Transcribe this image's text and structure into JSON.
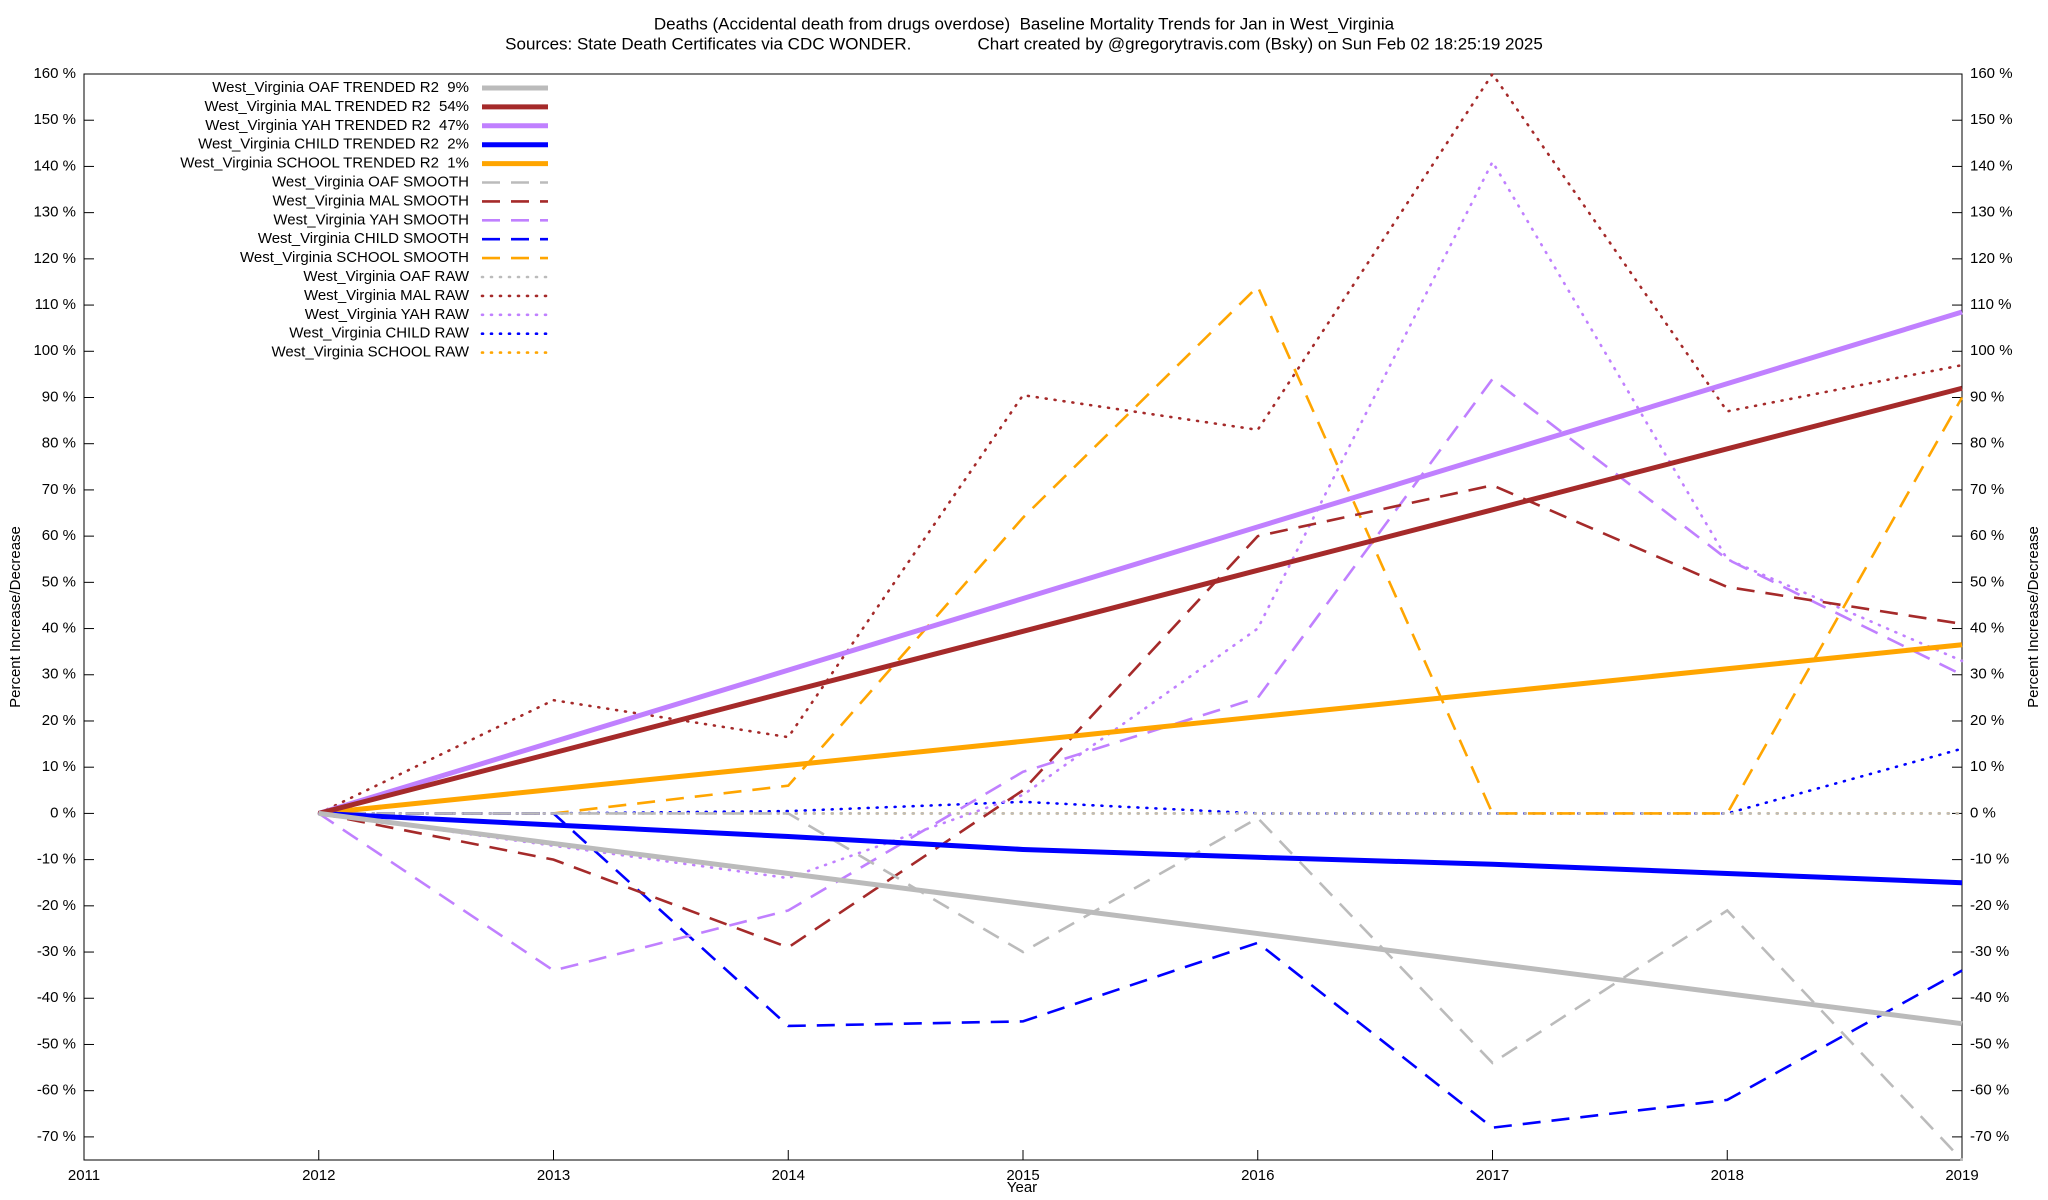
{
  "chart_data": {
    "type": "line",
    "title": "Deaths (Accidental death from drugs overdose)  Baseline Mortality Trends for Jan in West_Virginia",
    "subtitle": "Sources: State Death Certificates via CDC WONDER.              Chart created by @gregorytravis.com (Bsky) on Sun Feb 02 18:25:19 2025",
    "xlabel": "Year",
    "ylabel": "Percent Increase/Decrease",
    "y2label": "Percent Increase/Decrease",
    "x": [
      2012,
      2013,
      2014,
      2015,
      2016,
      2017,
      2018,
      2019
    ],
    "xlim": [
      2011,
      2019
    ],
    "xticks": [
      2011,
      2012,
      2013,
      2014,
      2015,
      2016,
      2017,
      2018,
      2019
    ],
    "ylim": [
      -75,
      160
    ],
    "yticks": [
      {
        "value": -70,
        "label": "-70 %"
      },
      {
        "value": -60,
        "label": "-60 %"
      },
      {
        "value": -50,
        "label": "-50 %"
      },
      {
        "value": -40,
        "label": "-40 %"
      },
      {
        "value": -30,
        "label": "-30 %"
      },
      {
        "value": -20,
        "label": "-20 %"
      },
      {
        "value": -10,
        "label": "-10 %"
      },
      {
        "value": 0,
        "label": "0 %"
      },
      {
        "value": 10,
        "label": "10 %"
      },
      {
        "value": 20,
        "label": "20 %"
      },
      {
        "value": 30,
        "label": "30 %"
      },
      {
        "value": 40,
        "label": "40 %"
      },
      {
        "value": 50,
        "label": "50 %"
      },
      {
        "value": 60,
        "label": "60 %"
      },
      {
        "value": 70,
        "label": "70 %"
      },
      {
        "value": 80,
        "label": "80 %"
      },
      {
        "value": 90,
        "label": "90 %"
      },
      {
        "value": 100,
        "label": "100 %"
      },
      {
        "value": 110,
        "label": "110 %"
      },
      {
        "value": 120,
        "label": "120 %"
      },
      {
        "value": 130,
        "label": "130 %"
      },
      {
        "value": 140,
        "label": "140 %"
      },
      {
        "value": 150,
        "label": "150 %"
      },
      {
        "value": 160,
        "label": "160 %"
      }
    ],
    "y2lim": [
      -75,
      160
    ],
    "y2ticks": [
      {
        "value": -70,
        "label": "-70 %"
      },
      {
        "value": -60,
        "label": "-60 %"
      },
      {
        "value": -50,
        "label": "-50 %"
      },
      {
        "value": -40,
        "label": "-40 %"
      },
      {
        "value": -30,
        "label": "-30 %"
      },
      {
        "value": -20,
        "label": "-20 %"
      },
      {
        "value": -10,
        "label": "-10 %"
      },
      {
        "value": 0,
        "label": "0 %"
      },
      {
        "value": 10,
        "label": "10 %"
      },
      {
        "value": 20,
        "label": "20 %"
      },
      {
        "value": 30,
        "label": "30 %"
      },
      {
        "value": 40,
        "label": "40 %"
      },
      {
        "value": 50,
        "label": "50 %"
      },
      {
        "value": 60,
        "label": "60 %"
      },
      {
        "value": 70,
        "label": "70 %"
      },
      {
        "value": 80,
        "label": "80 %"
      },
      {
        "value": 90,
        "label": "90 %"
      },
      {
        "value": 100,
        "label": "100 %"
      },
      {
        "value": 110,
        "label": "110 %"
      },
      {
        "value": 120,
        "label": "120 %"
      },
      {
        "value": 130,
        "label": "130 %"
      },
      {
        "value": 140,
        "label": "140 %"
      },
      {
        "value": 150,
        "label": "150 %"
      },
      {
        "value": 160,
        "label": "160 %"
      }
    ],
    "grid": false,
    "legend": "top-left",
    "series": [
      {
        "name": "West_Virginia OAF TRENDED R2  9%",
        "color": "#bbbbbb",
        "style": "solid",
        "values": [
          0,
          -6.5,
          -13,
          -19.5,
          -26,
          -32.5,
          -39,
          -45.5
        ]
      },
      {
        "name": "West_Virginia MAL TRENDED R2  54%",
        "color": "#a52a2a",
        "style": "solid",
        "values": [
          0,
          13.1,
          26.3,
          39.4,
          52.6,
          65.7,
          78.9,
          92
        ]
      },
      {
        "name": "West_Virginia YAH TRENDED R2  47%",
        "color": "#c080ff",
        "style": "solid",
        "values": [
          0,
          15.5,
          31,
          46.5,
          62,
          77.5,
          93,
          108.5
        ]
      },
      {
        "name": "West_Virginia CHILD TRENDED R2  2%",
        "color": "#0000ff",
        "style": "solid",
        "values": [
          0,
          -2.5,
          -5,
          -7.8,
          -9.5,
          -11,
          -13,
          -15
        ]
      },
      {
        "name": "West_Virginia SCHOOL TRENDED R2  1%",
        "color": "#ffa500",
        "style": "solid",
        "values": [
          0,
          5.2,
          10.4,
          15.6,
          20.9,
          26.1,
          31.3,
          36.5
        ]
      },
      {
        "name": "West_Virginia OAF SMOOTH",
        "color": "#bbbbbb",
        "style": "dashed",
        "values": [
          0,
          0,
          0,
          -30,
          -1,
          -54,
          -21,
          -75
        ]
      },
      {
        "name": "West_Virginia MAL SMOOTH",
        "color": "#a52a2a",
        "style": "dashed",
        "values": [
          0,
          -10,
          -29,
          5,
          60,
          71,
          49,
          41
        ]
      },
      {
        "name": "West_Virginia YAH SMOOTH",
        "color": "#c080ff",
        "style": "dashed",
        "values": [
          0,
          -34,
          -21,
          9,
          25,
          94,
          55,
          30
        ]
      },
      {
        "name": "West_Virginia CHILD SMOOTH",
        "color": "#0000ff",
        "style": "dashed",
        "values": [
          0,
          0,
          -46,
          -45,
          -28,
          -68,
          -62,
          -34
        ]
      },
      {
        "name": "West_Virginia SCHOOL SMOOTH",
        "color": "#ffa500",
        "style": "dashed",
        "values": [
          0,
          0,
          6,
          64,
          114,
          0,
          0,
          90
        ]
      },
      {
        "name": "West_Virginia OAF RAW",
        "color": "#bbbbbb",
        "style": "dotted",
        "values": [
          0,
          0,
          0,
          0,
          0,
          0,
          0,
          0
        ]
      },
      {
        "name": "West_Virginia MAL RAW",
        "color": "#a52a2a",
        "style": "dotted",
        "values": [
          0,
          24.5,
          16.5,
          90.5,
          83,
          160,
          87,
          97
        ]
      },
      {
        "name": "West_Virginia YAH RAW",
        "color": "#c080ff",
        "style": "dotted",
        "values": [
          0,
          -7,
          -14,
          4,
          40,
          141,
          55,
          33
        ]
      },
      {
        "name": "West_Virginia CHILD RAW",
        "color": "#0000ff",
        "style": "dotted",
        "values": [
          0,
          0,
          0.5,
          2.5,
          0,
          0,
          0,
          14
        ]
      },
      {
        "name": "West_Virginia SCHOOL RAW",
        "color": "#ffa500",
        "style": "dotted",
        "values": [
          0,
          0,
          0,
          0,
          0,
          0,
          0,
          0
        ]
      }
    ]
  }
}
